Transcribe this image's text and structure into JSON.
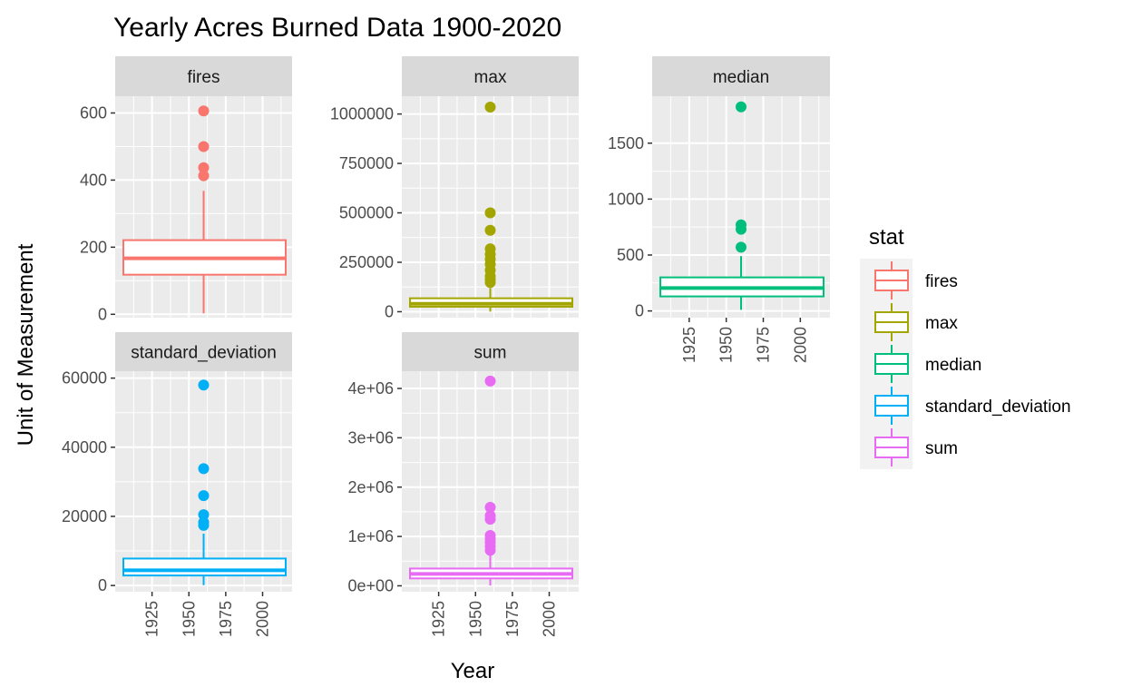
{
  "title": "Yearly Acres Burned Data 1900-2020",
  "chart_data": {
    "type": "boxplot",
    "title": "Yearly Acres Burned Data 1900-2020",
    "xlabel": "Year",
    "ylabel": "Unit of Measurement",
    "x_ticks": [
      1925,
      1950,
      1975,
      2000
    ],
    "x_tick_labels": [
      "1925",
      "1950",
      "1975",
      "2000"
    ],
    "x_range": [
      1900,
      2020
    ],
    "grid": true,
    "legend": {
      "title": "stat",
      "position": "right",
      "entries": [
        "fires",
        "max",
        "median",
        "standard_deviation",
        "sum"
      ]
    },
    "panels": [
      {
        "name": "fires",
        "color": "#F8766D",
        "ylim": [
          -10,
          650
        ],
        "y_ticks": [
          0,
          200,
          400,
          600
        ],
        "y_tick_labels": [
          "0",
          "200",
          "400",
          "600"
        ],
        "x_center": 1960,
        "box": {
          "lower_whisker": 3,
          "q1": 118,
          "median": 167,
          "q3": 221,
          "upper_whisker": 368
        },
        "outliers": [
          413,
          437,
          500,
          606
        ]
      },
      {
        "name": "max",
        "color": "#A3A500",
        "ylim": [
          -30000,
          1090000
        ],
        "y_ticks": [
          0,
          250000,
          500000,
          750000,
          1000000
        ],
        "y_tick_labels": [
          "0",
          "250000",
          "500000",
          "750000",
          "1000000"
        ],
        "x_center": 1960,
        "box": {
          "lower_whisker": 500,
          "q1": 25000,
          "median": 40000,
          "q3": 68000,
          "upper_whisker": 120000
        },
        "outliers": [
          148000,
          163000,
          180000,
          210000,
          240000,
          265000,
          290000,
          318000,
          412000,
          500000,
          1035000
        ]
      },
      {
        "name": "median",
        "color": "#00BF7D",
        "ylim": [
          -60,
          1920
        ],
        "y_ticks": [
          0,
          500,
          1000,
          1500
        ],
        "y_tick_labels": [
          "0",
          "500",
          "1000",
          "1500"
        ],
        "x_center": 1960,
        "box": {
          "lower_whisker": 10,
          "q1": 130,
          "median": 205,
          "q3": 300,
          "upper_whisker": 490
        },
        "outliers": [
          570,
          730,
          770,
          1825
        ]
      },
      {
        "name": "standard_deviation",
        "color": "#00B0F6",
        "ylim": [
          -1800,
          62000
        ],
        "y_ticks": [
          0,
          20000,
          40000,
          60000
        ],
        "y_tick_labels": [
          "0",
          "20000",
          "40000",
          "60000"
        ],
        "x_center": 1960,
        "box": {
          "lower_whisker": 100,
          "q1": 2900,
          "median": 4400,
          "q3": 7800,
          "upper_whisker": 15000
        },
        "outliers": [
          17400,
          18300,
          20500,
          26000,
          33800,
          58000
        ]
      },
      {
        "name": "sum",
        "color": "#E76BF3",
        "ylim": [
          -120000,
          4350000
        ],
        "y_ticks": [
          0,
          1000000,
          2000000,
          3000000,
          4000000
        ],
        "y_tick_labels": [
          "0e+00",
          "1e+06",
          "2e+06",
          "3e+06",
          "4e+06"
        ],
        "x_center": 1960,
        "box": {
          "lower_whisker": 5000,
          "q1": 150000,
          "median": 240000,
          "q3": 350000,
          "upper_whisker": 650000
        },
        "outliers": [
          720000,
          800000,
          880000,
          950000,
          1020000,
          1350000,
          1420000,
          1590000,
          4150000
        ]
      }
    ]
  }
}
